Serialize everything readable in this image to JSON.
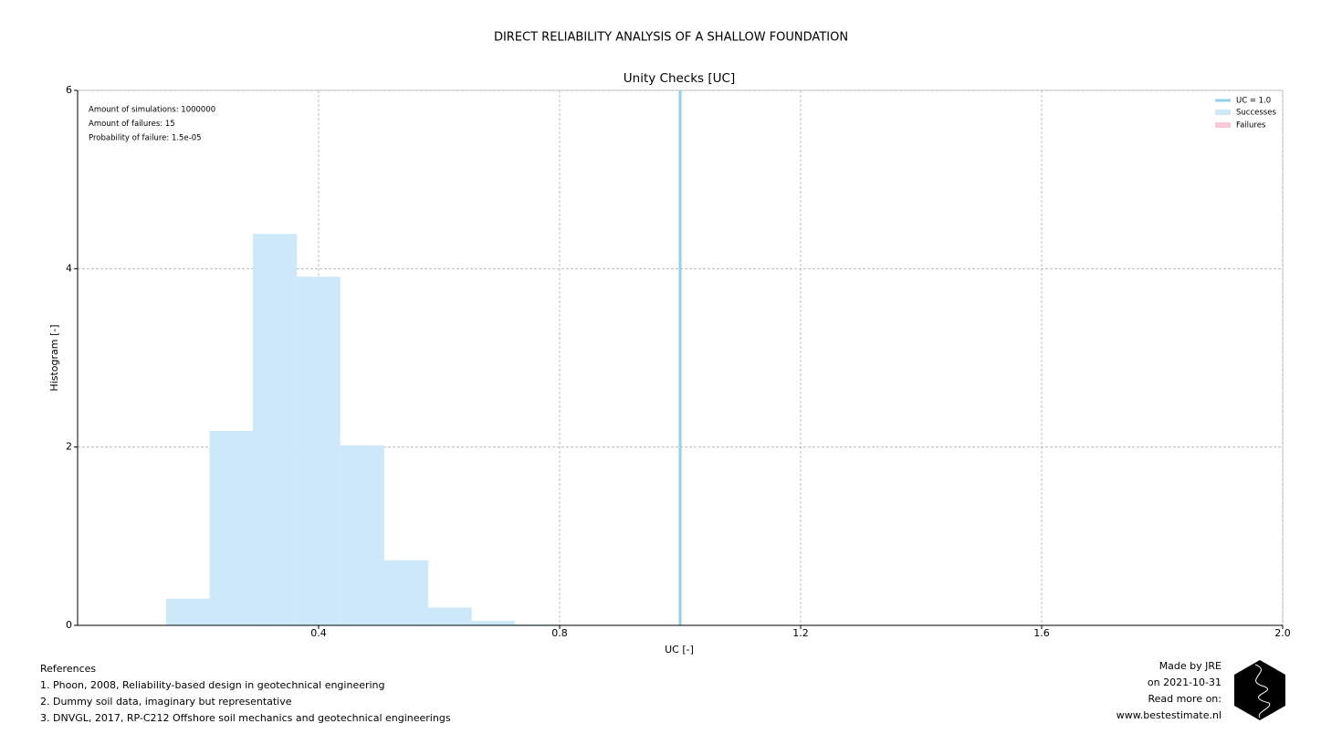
{
  "chart_data": {
    "type": "histogram",
    "title": "DIRECT RELIABILITY ANALYSIS OF A SHALLOW FOUNDATION",
    "subtitle": "Unity Checks [UC]",
    "x_label": "UC [-]",
    "y_label": "Histogram [-]",
    "bins": [
      0.147,
      0.219,
      0.291,
      0.364,
      0.436,
      0.509,
      0.582,
      0.654,
      0.726,
      0.799
    ],
    "series": [
      {
        "name": "Successes",
        "color": "#cce8f9",
        "values": [
          0.3,
          2.18,
          4.39,
          3.91,
          2.02,
          0.73,
          0.2,
          0.05,
          0.01
        ]
      }
    ],
    "legend_extra": [
      {
        "name": "Failures",
        "color": "#f6cad6"
      }
    ],
    "reference_line": {
      "name": "UC = 1.0",
      "x": 1.0,
      "color": "#8fd0ea"
    },
    "annotations": [
      "Amount of simulations: 1000000",
      "Amount of failures: 15",
      "Probability of failure: 1.5e-05"
    ],
    "xlim": [
      0,
      2
    ],
    "ylim": [
      0,
      6
    ],
    "xticks": [
      0.4,
      0.8,
      1.2,
      1.6,
      {
        "value": 2,
        "label": "2.0"
      }
    ],
    "yticks": [
      0,
      2,
      4,
      6
    ],
    "grid": true,
    "legend_position": "upper right"
  },
  "footer": {
    "references": [
      "References",
      "1. Phoon, 2008, Reliability-based design in geotechnical engineering",
      "2. Dummy soil data, imaginary but representative",
      "3. DNVGL, 2017, RP-C212 Offshore soil mechanics and geotechnical engineerings"
    ],
    "credits": [
      "Made by JRE",
      "on 2021-10-31",
      "Read more on:",
      "www.bestestimate.nl"
    ]
  }
}
